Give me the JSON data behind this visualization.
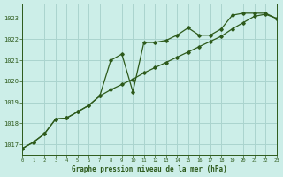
{
  "title": "Graphe pression niveau de la mer (hPa)",
  "background_color": "#cceee8",
  "grid_color": "#aad4ce",
  "line_color": "#2d5a1b",
  "x_min": 0,
  "x_max": 23,
  "y_min": 1016.5,
  "y_max": 1023.7,
  "yticks": [
    1017,
    1018,
    1019,
    1020,
    1021,
    1022,
    1023
  ],
  "xticks": [
    0,
    1,
    2,
    3,
    4,
    5,
    6,
    7,
    8,
    9,
    10,
    11,
    12,
    13,
    14,
    15,
    16,
    17,
    18,
    19,
    20,
    21,
    22,
    23
  ],
  "series1_x": [
    0,
    1,
    2,
    3,
    4,
    5,
    6,
    7,
    8,
    9,
    10,
    11,
    12,
    13,
    14,
    15,
    16,
    17,
    18,
    19,
    20,
    21,
    22,
    23
  ],
  "series1_y": [
    1016.8,
    1017.1,
    1017.5,
    1018.2,
    1018.25,
    1018.55,
    1018.85,
    1019.3,
    1019.6,
    1019.85,
    1020.1,
    1020.4,
    1020.65,
    1020.9,
    1021.15,
    1021.4,
    1021.65,
    1021.9,
    1022.15,
    1022.5,
    1022.8,
    1023.1,
    1023.2,
    1023.0
  ],
  "series2_x": [
    0,
    1,
    2,
    3,
    4,
    5,
    6,
    7,
    8,
    9,
    10,
    11,
    12,
    13,
    14,
    15,
    16,
    17,
    18,
    19,
    20,
    21,
    22,
    23
  ],
  "series2_y": [
    1016.8,
    1017.1,
    1017.5,
    1018.2,
    1018.25,
    1018.55,
    1018.85,
    1019.3,
    1021.0,
    1021.3,
    1019.5,
    1021.85,
    1021.85,
    1021.95,
    1022.2,
    1022.55,
    1022.2,
    1022.2,
    1022.5,
    1023.15,
    1023.25,
    1023.25,
    1023.25,
    1023.0
  ]
}
